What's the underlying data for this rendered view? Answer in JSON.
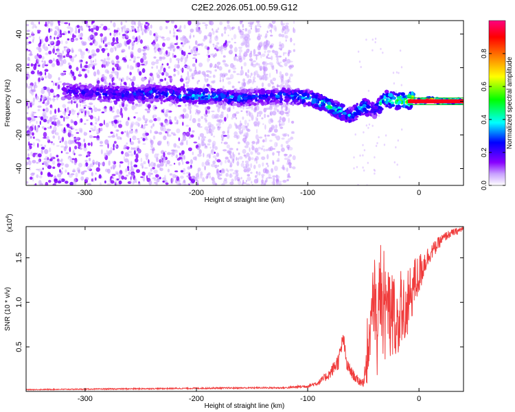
{
  "page_title": "C2E2.2026.051.00.59.G12",
  "colors": {
    "snr_line": "#f03c3c",
    "ridge_core": "#ff2020",
    "ridge_mid": "#30e0c0",
    "scatter_dark": "#6a2ad8",
    "scatter_light": "#d6c4f4"
  },
  "chart_data": [
    {
      "type": "heatmap",
      "xlabel": "Height of straight line (km)",
      "ylabel": "Frequency (Hz)",
      "xlim": [
        -353,
        40
      ],
      "ylim": [
        -50,
        48
      ],
      "x_ticks": [
        -300,
        -200,
        -100,
        0
      ],
      "y_ticks": [
        -40,
        -20,
        0,
        20,
        40
      ],
      "colorbar": {
        "label": "Normalized spectral amplitude",
        "range": [
          0.0,
          1.0
        ],
        "ticks": [
          "0.0",
          "0.2",
          "0.4",
          "0.6",
          "0.8"
        ],
        "colormap": [
          "#ffffff",
          "#8800ff",
          "#0000ff",
          "#00ffff",
          "#00ff00",
          "#ffff00",
          "#ff8000",
          "#ff0000",
          "#ff0080"
        ]
      },
      "ridge": {
        "description_free": true,
        "x": [
          -320,
          -260,
          -240,
          -220,
          -200,
          -180,
          -160,
          -140,
          -120,
          -100,
          -90,
          -80,
          -70,
          -60,
          -55,
          -50,
          -45,
          -40,
          -35,
          -30,
          -25,
          -20,
          -15,
          -10,
          -5,
          0,
          10,
          20,
          40
        ],
        "y": [
          6,
          4,
          5,
          4,
          3,
          3,
          2,
          3,
          3,
          2,
          0,
          -3,
          -6,
          -9,
          -5,
          -3,
          -4,
          -5,
          -2,
          2,
          1,
          0,
          1,
          0,
          1,
          0,
          1,
          0,
          0
        ],
        "amplitude": [
          0.25,
          0.3,
          0.35,
          0.35,
          0.4,
          0.35,
          0.35,
          0.3,
          0.35,
          0.4,
          0.45,
          0.5,
          0.45,
          0.35,
          0.4,
          0.45,
          0.35,
          0.3,
          0.45,
          0.5,
          0.55,
          0.6,
          0.65,
          0.75,
          0.8,
          0.9,
          0.95,
          0.95,
          0.95
        ]
      },
      "scatter_density": {
        "x_start": -353,
        "x_end": -112,
        "note_free": true
      }
    },
    {
      "type": "line",
      "xlabel": "Height of straight line (km)",
      "ylabel": "SNR (10 * v/v)",
      "y_multiplier_label": "(x10",
      "y_multiplier_exp": "4",
      "y_multiplier_close": ")",
      "xlim": [
        -353,
        40
      ],
      "ylim": [
        0,
        1.85
      ],
      "x_ticks": [
        -300,
        -200,
        -100,
        0
      ],
      "y_ticks": [
        0.5,
        1.0,
        1.5
      ],
      "series": [
        {
          "x": [
            -353,
            -300,
            -250,
            -200,
            -150,
            -120,
            -100,
            -90,
            -80,
            -72,
            -68,
            -65,
            -60,
            -55,
            -50,
            -45,
            -42,
            -40,
            -38,
            -35,
            -32,
            -30,
            -28,
            -25,
            -22,
            -20,
            -15,
            -10,
            -5,
            0,
            5,
            10,
            15,
            20,
            25,
            30,
            35,
            40
          ],
          "y": [
            0.02,
            0.025,
            0.03,
            0.035,
            0.04,
            0.04,
            0.06,
            0.1,
            0.2,
            0.35,
            0.6,
            0.3,
            0.2,
            0.12,
            0.1,
            0.4,
            0.9,
            1.1,
            0.8,
            1.2,
            0.9,
            1.0,
            0.85,
            0.9,
            0.8,
            0.75,
            0.85,
            0.95,
            1.2,
            1.3,
            1.45,
            1.55,
            1.62,
            1.7,
            1.75,
            1.78,
            1.8,
            1.83
          ],
          "noise": [
            0.005,
            0.006,
            0.007,
            0.008,
            0.008,
            0.01,
            0.02,
            0.03,
            0.06,
            0.1,
            0.1,
            0.08,
            0.06,
            0.05,
            0.05,
            0.3,
            0.45,
            0.5,
            0.5,
            0.5,
            0.5,
            0.5,
            0.5,
            0.5,
            0.45,
            0.4,
            0.4,
            0.4,
            0.3,
            0.25,
            0.15,
            0.1,
            0.08,
            0.06,
            0.05,
            0.04,
            0.04,
            0.03
          ]
        }
      ]
    }
  ]
}
